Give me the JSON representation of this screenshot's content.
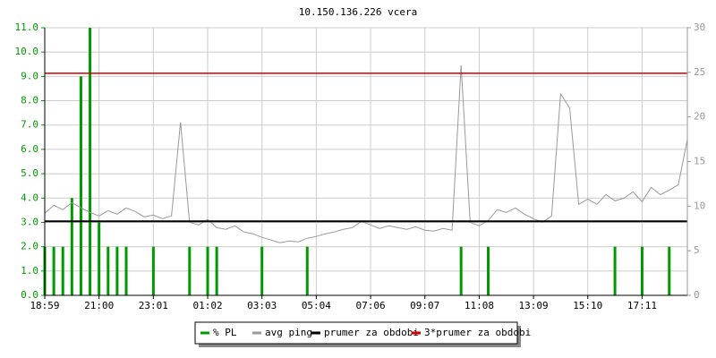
{
  "chart_data": {
    "type": "line",
    "title": "10.150.136.226 vcera",
    "categories": [
      "18:59",
      null,
      null,
      null,
      null,
      null,
      "21:00",
      null,
      null,
      null,
      null,
      null,
      "23:01",
      null,
      null,
      null,
      null,
      null,
      "01:02",
      null,
      null,
      null,
      null,
      null,
      "03:03",
      null,
      null,
      null,
      null,
      null,
      "05:04",
      null,
      null,
      null,
      null,
      null,
      "07:06",
      null,
      null,
      null,
      null,
      null,
      "09:07",
      null,
      null,
      null,
      null,
      null,
      "11:08",
      null,
      null,
      null,
      null,
      null,
      "13:09",
      null,
      null,
      null,
      null,
      null,
      "15:10",
      null,
      null,
      null,
      null,
      null,
      "17:11",
      null,
      null,
      null,
      null,
      null
    ],
    "series": [
      {
        "name": "% PL",
        "color": "#009900",
        "type": "bar",
        "axis": "y",
        "values": [
          2,
          2,
          2,
          4,
          9,
          11,
          3,
          2,
          2,
          2,
          0,
          0,
          2,
          0,
          0,
          0,
          2,
          0,
          2,
          2,
          0,
          0,
          0,
          0,
          2,
          0,
          0,
          0,
          0,
          2,
          0,
          0,
          0,
          0,
          0,
          0,
          0,
          0,
          0,
          0,
          0,
          0,
          0,
          0,
          0,
          0,
          2,
          0,
          0,
          2,
          0,
          0,
          0,
          0,
          0,
          0,
          0,
          0,
          0,
          0,
          0,
          0,
          0,
          2,
          0,
          0,
          2,
          0,
          0,
          2,
          0,
          0
        ]
      },
      {
        "name": "avg ping",
        "color": "#999999",
        "type": "line",
        "axis": "y2",
        "values": [
          9.2,
          10.1,
          9.6,
          10.4,
          9.8,
          9.3,
          8.9,
          9.5,
          9.1,
          9.8,
          9.4,
          8.8,
          9.0,
          8.6,
          8.9,
          19.4,
          8.2,
          7.9,
          8.5,
          7.6,
          7.4,
          7.8,
          7.1,
          6.9,
          6.5,
          6.2,
          5.9,
          6.1,
          6.0,
          6.4,
          6.6,
          6.9,
          7.1,
          7.4,
          7.6,
          8.3,
          7.9,
          7.5,
          7.8,
          7.6,
          7.4,
          7.7,
          7.3,
          7.2,
          7.5,
          7.3,
          25.8,
          8.2,
          7.8,
          8.4,
          9.6,
          9.3,
          9.8,
          9.1,
          8.6,
          8.2,
          8.9,
          22.6,
          21.0,
          10.2,
          10.8,
          10.2,
          11.3,
          10.6,
          10.9,
          11.6,
          10.5,
          12.1,
          11.3,
          11.8,
          12.4,
          17.5
        ]
      }
    ],
    "reference_lines": [
      {
        "name": "prumer za obdobi",
        "color": "#000000",
        "value": 8.3,
        "axis": "y2"
      },
      {
        "name": "3*prumer za obdobi",
        "color": "#cc0000",
        "value": 24.9,
        "axis": "y2"
      }
    ],
    "ylim": [
      0,
      11
    ],
    "yticks": [
      {
        "value": 0,
        "label": "0.0"
      },
      {
        "value": 1,
        "label": "1.0"
      },
      {
        "value": 2,
        "label": "2.0"
      },
      {
        "value": 3,
        "label": "3.0"
      },
      {
        "value": 4,
        "label": "4.0"
      },
      {
        "value": 5,
        "label": "5.0"
      },
      {
        "value": 6,
        "label": "6.0"
      },
      {
        "value": 7,
        "label": "7.0"
      },
      {
        "value": 8,
        "label": "8.0"
      },
      {
        "value": 9,
        "label": "9.0"
      },
      {
        "value": 10,
        "label": "10.0"
      },
      {
        "value": 11,
        "label": "11.0"
      }
    ],
    "y2lim": [
      0,
      30
    ],
    "y2ticks": [
      0,
      5,
      10,
      15,
      20,
      25,
      30
    ],
    "grid": true
  }
}
